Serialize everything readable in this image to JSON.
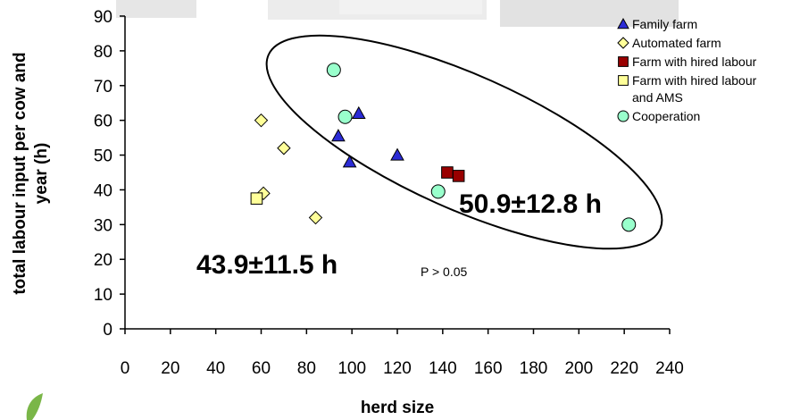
{
  "chart_data": {
    "type": "scatter",
    "title": "",
    "xlabel": "herd size",
    "ylabel": "total labour input per cow and year (h)",
    "ylabel_lines": [
      "total labour input per cow and",
      "year (h)"
    ],
    "xlim": [
      0,
      240
    ],
    "ylim": [
      0,
      90
    ],
    "xticks": [
      "0",
      "20",
      "40",
      "60",
      "80",
      "100",
      "120",
      "140",
      "160",
      "180",
      "200",
      "220",
      "240"
    ],
    "yticks": [
      "0",
      "10",
      "20",
      "30",
      "40",
      "50",
      "60",
      "70",
      "80",
      "90"
    ],
    "grid": false,
    "legend_position": "top-right",
    "series": [
      {
        "name": "Family farm",
        "marker": "triangle",
        "color": "#2b2bd6",
        "stroke": "#000000",
        "points": [
          [
            94,
            55.5
          ],
          [
            99,
            48
          ],
          [
            103,
            62
          ],
          [
            120,
            50
          ]
        ]
      },
      {
        "name": "Automated  farm",
        "marker": "diamond",
        "color": "#ffff99",
        "stroke": "#000000",
        "points": [
          [
            60,
            60
          ],
          [
            61,
            39
          ],
          [
            70,
            52
          ],
          [
            84,
            32
          ]
        ]
      },
      {
        "name": "Farm with hired labour",
        "marker": "square",
        "color": "#990000",
        "stroke": "#000000",
        "points": [
          [
            142,
            45
          ],
          [
            147,
            44
          ]
        ]
      },
      {
        "name": "Farm with hired labour and AMS",
        "name_lines": [
          "Farm with hired labour",
          "and AMS"
        ],
        "marker": "square",
        "color": "#ffff99",
        "stroke": "#000000",
        "points": [
          [
            58,
            37.5
          ]
        ]
      },
      {
        "name": "Cooperation",
        "marker": "circle",
        "color": "#99ffcc",
        "stroke": "#000000",
        "points": [
          [
            92,
            74.5
          ],
          [
            97,
            61
          ],
          [
            138,
            39.5
          ],
          [
            222,
            30
          ]
        ]
      }
    ],
    "annotations": {
      "mean_inside_ellipse": "50.9±12.8 h",
      "mean_outside_ellipse": "43.9±11.5 h",
      "p_value": "P > 0.05"
    },
    "ellipse": {
      "center": [
        150,
        52
      ],
      "note": "ellipse encloses family, cooperation and hired-labour farms"
    }
  }
}
